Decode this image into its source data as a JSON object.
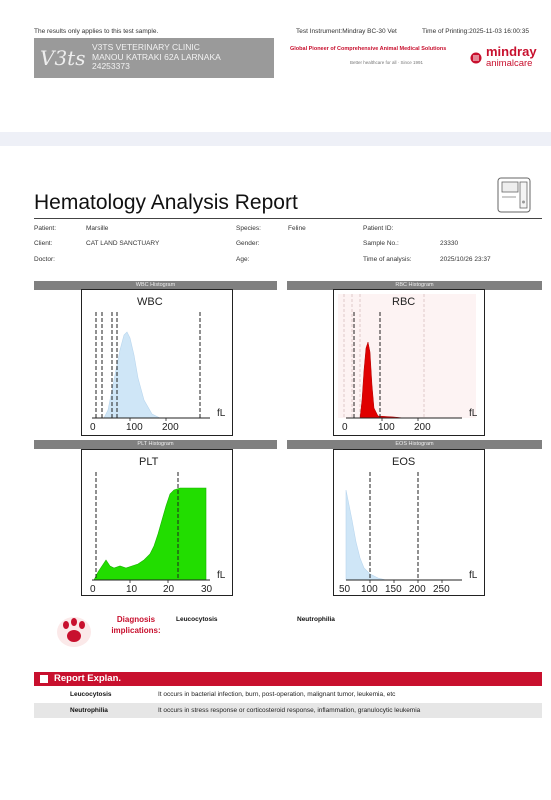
{
  "top_notice": "The results only applies to this test sample.",
  "instrument": "Test Instrument:Mindray BC-30 Vet",
  "printing_time": "Time of Printing:2025-11-03 16:00:35",
  "clinic": {
    "logo_text": "V3ts",
    "name": "V3TS VETERINARY CLINIC",
    "address": "MANOU KATRAKI 62A LARNAKA",
    "phone": "24253373"
  },
  "brand": {
    "tagline": "Global Pioneer of Comprehensive Animal Medical Solutions",
    "subtagline": "Better healthcare for all  ·  Since 1991",
    "name": "mindray",
    "sub": "animalcare",
    "color": "#c8102e"
  },
  "title": "Hematology Analysis Report",
  "patient_info": {
    "patient_label": "Patient:",
    "patient": "Marsille",
    "species_label": "Species:",
    "species": "Feline",
    "patient_id_label": "Patient ID:",
    "patient_id": "",
    "client_label": "Client:",
    "client": "CAT LAND SANCTUARY",
    "gender_label": "Gender:",
    "gender": "",
    "sample_label": "Sample No.:",
    "sample": "23330",
    "doctor_label": "Doctor:",
    "doctor": "",
    "age_label": "Age:",
    "age": "",
    "time_label": "Time of analysis:",
    "time": "2025/10/26 23:37"
  },
  "histograms": {
    "wbc": {
      "header": "WBC Histogram",
      "name": "WBC",
      "unit": "fL",
      "ticks": [
        "0",
        "100",
        "200"
      ],
      "color": "#cfe6f7"
    },
    "rbc": {
      "header": "RBC Histogram",
      "name": "RBC",
      "unit": "fL",
      "ticks": [
        "0",
        "100",
        "200"
      ],
      "color": "#e00000"
    },
    "plt": {
      "header": "PLT Histogram",
      "name": "PLT",
      "unit": "fL",
      "ticks": [
        "0",
        "10",
        "20",
        "30"
      ],
      "color": "#22dd00"
    },
    "eos": {
      "header": "EOS Histogram",
      "name": "EOS",
      "unit": "fL",
      "ticks": [
        "50",
        "100",
        "150",
        "200",
        "250"
      ],
      "color": "#cfe6f7"
    }
  },
  "diagnosis": {
    "label": "Diagnosis implications:",
    "items": [
      "Leucocytosis",
      "Neutrophilia"
    ]
  },
  "explanation": {
    "header": "Report Explan.",
    "rows": [
      {
        "term": "Leucocytosis",
        "text": "It occurs in bacterial infection, burn, post-operation, malignant tumor, leukemia, etc"
      },
      {
        "term": "Neutrophilia",
        "text": "It occurs in stress response or corticosteroid response, inflammation, granulocytic leukemia"
      }
    ]
  }
}
